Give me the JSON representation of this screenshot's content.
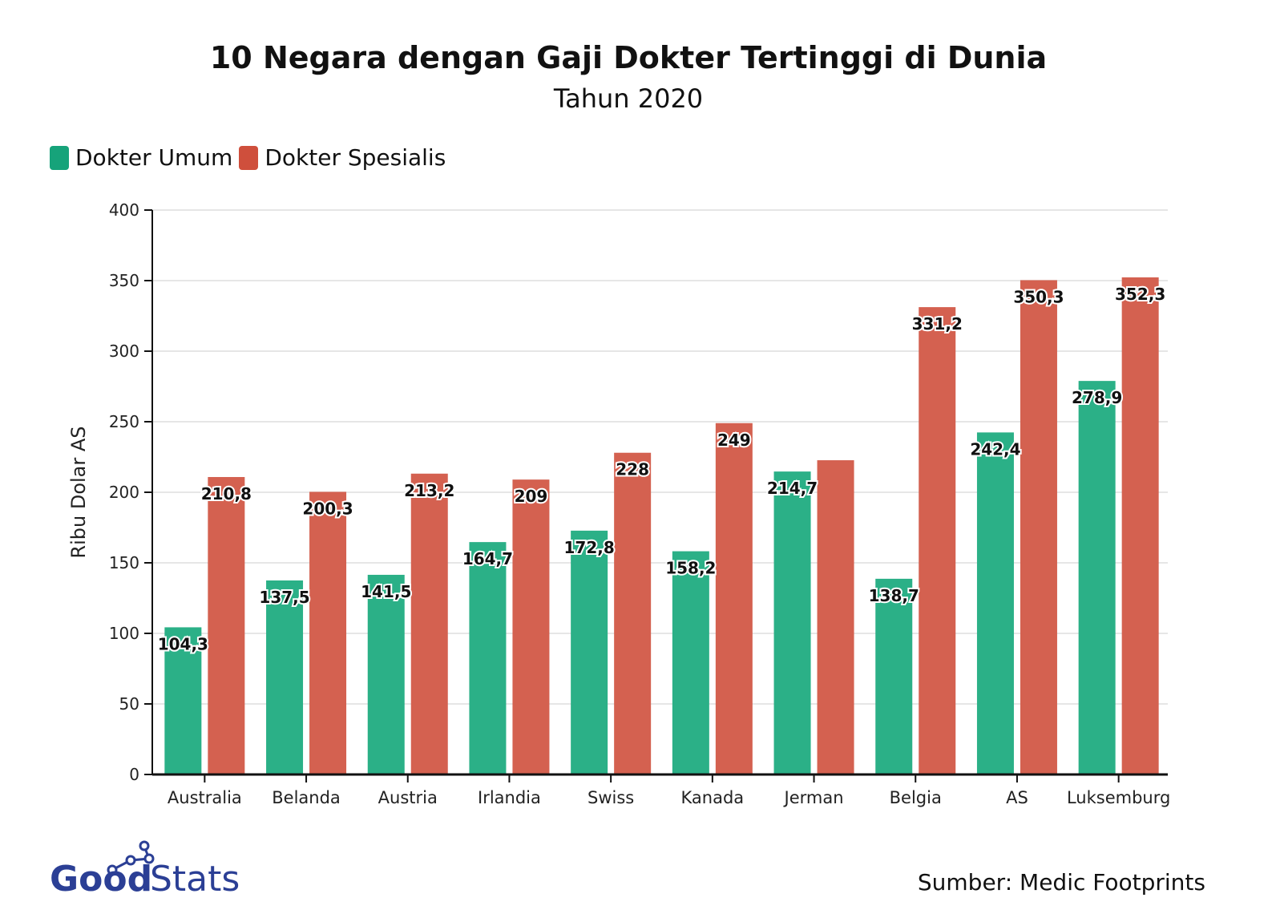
{
  "chart_data": {
    "type": "bar",
    "title": "10 Negara dengan Gaji Dokter Tertinggi di Dunia",
    "subtitle": "Tahun 2020",
    "xlabel": "",
    "ylabel": "Ribu Dolar AS",
    "ylim": [
      0,
      400
    ],
    "yticks": [
      "0",
      "50",
      "100",
      "150",
      "200",
      "250",
      "300",
      "350",
      "400"
    ],
    "grid": true,
    "legend_placement": "top-left",
    "categories": [
      "Australia",
      "Belanda",
      "Austria",
      "Irlandia",
      "Swiss",
      "Kanada",
      "Jerman",
      "Belgia",
      "AS",
      "Luksemburg"
    ],
    "series": [
      {
        "name": "Dokter Umum",
        "color": "#2bb087",
        "values": [
          104.3,
          137.5,
          141.5,
          164.7,
          172.8,
          158.2,
          214.7,
          138.7,
          242.4,
          278.9
        ],
        "labels": [
          "104,3",
          "137,5",
          "141,5",
          "164,7",
          "172,8",
          "158,2",
          "214,7",
          "138,7",
          "242,4",
          "278,9"
        ]
      },
      {
        "name": "Dokter Spesialis",
        "color": "#d46150",
        "values": [
          210.8,
          200.3,
          213.2,
          209,
          228,
          249,
          222.7,
          331.2,
          350.3,
          352.3
        ],
        "labels": [
          "210,8",
          "200,3",
          "213,2",
          "209",
          "228",
          "249",
          "",
          "331,2",
          "350,3",
          "352,3"
        ]
      }
    ],
    "source": "Sumber: Medic Footprints"
  },
  "logo": {
    "text": "GoodStats",
    "color": "#2b3f95"
  }
}
